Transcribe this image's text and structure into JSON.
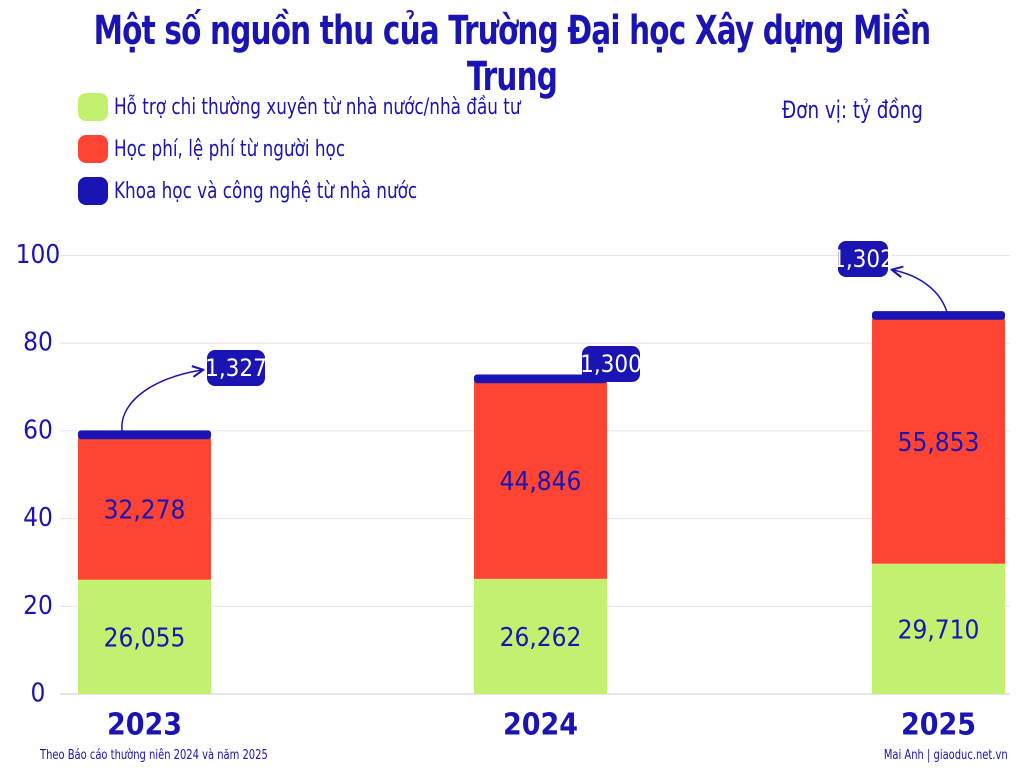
{
  "title": "Một số nguồn thu của Trường Đại học Xây dựng Miền Trung",
  "unit": "Đơn vị: tỷ đồng",
  "footer": {
    "source": "Theo Báo cáo thường niên 2024 và năm 2025",
    "credit": "Mai Anh | giaoduc.net.vn"
  },
  "colors": {
    "text": "#1a14b3",
    "green": "#c2f06f",
    "red": "#ff4433",
    "blue": "#1a14b3",
    "grid": "#e4e4f2"
  },
  "chart_data": {
    "type": "bar",
    "stacked": true,
    "categories": [
      "2023",
      "2024",
      "2025"
    ],
    "series": [
      {
        "name": "Hỗ trợ chi thường xuyên từ nhà nước/nhà đầu tư",
        "color": "#c2f06f",
        "values": [
          26.055,
          26.262,
          29.71
        ],
        "labels": [
          "26,055",
          "26,262",
          "29,710"
        ]
      },
      {
        "name": "Học phí, lệ phí từ người học",
        "color": "#ff4433",
        "values": [
          32.278,
          44.846,
          55.853
        ],
        "labels": [
          "32,278",
          "44,846",
          "55,853"
        ]
      },
      {
        "name": "Khoa học và công nghệ từ nhà nước",
        "color": "#1a14b3",
        "values": [
          1.327,
          1.3,
          1.302
        ],
        "labels": [
          "1,327",
          "1,300",
          "1,302"
        ]
      }
    ],
    "ylim": [
      0,
      100
    ],
    "yticks": [
      "0",
      "20",
      "40",
      "60",
      "80",
      "100"
    ],
    "grid": true,
    "legend_position": "top-left"
  }
}
